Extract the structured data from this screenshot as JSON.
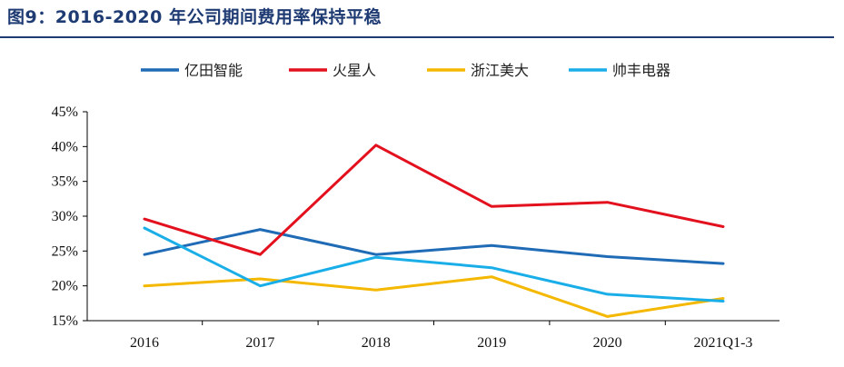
{
  "header": {
    "title": "图9：2016-2020 年公司期间费用率保持平稳"
  },
  "chart_data": {
    "type": "line",
    "title": "",
    "xlabel": "",
    "ylabel": "",
    "categories": [
      "2016",
      "2017",
      "2018",
      "2019",
      "2020",
      "2021Q1-3"
    ],
    "ylim": [
      0.15,
      0.45
    ],
    "yticks": [
      "15%",
      "20%",
      "25%",
      "30%",
      "35%",
      "40%",
      "45%"
    ],
    "grid": false,
    "legend_position": "top",
    "series": [
      {
        "name": "亿田智能",
        "color": "#1f6bb5",
        "values": [
          0.245,
          0.281,
          0.245,
          0.258,
          0.242,
          0.232
        ]
      },
      {
        "name": "火星人",
        "color": "#e3101e",
        "values": [
          0.296,
          0.245,
          0.402,
          0.314,
          0.32,
          0.285
        ]
      },
      {
        "name": "浙江美大",
        "color": "#f5b800",
        "values": [
          0.2,
          0.21,
          0.194,
          0.213,
          0.156,
          0.182
        ]
      },
      {
        "name": "帅丰电器",
        "color": "#1aaee8",
        "values": [
          0.283,
          0.2,
          0.241,
          0.226,
          0.188,
          0.178
        ]
      }
    ]
  }
}
